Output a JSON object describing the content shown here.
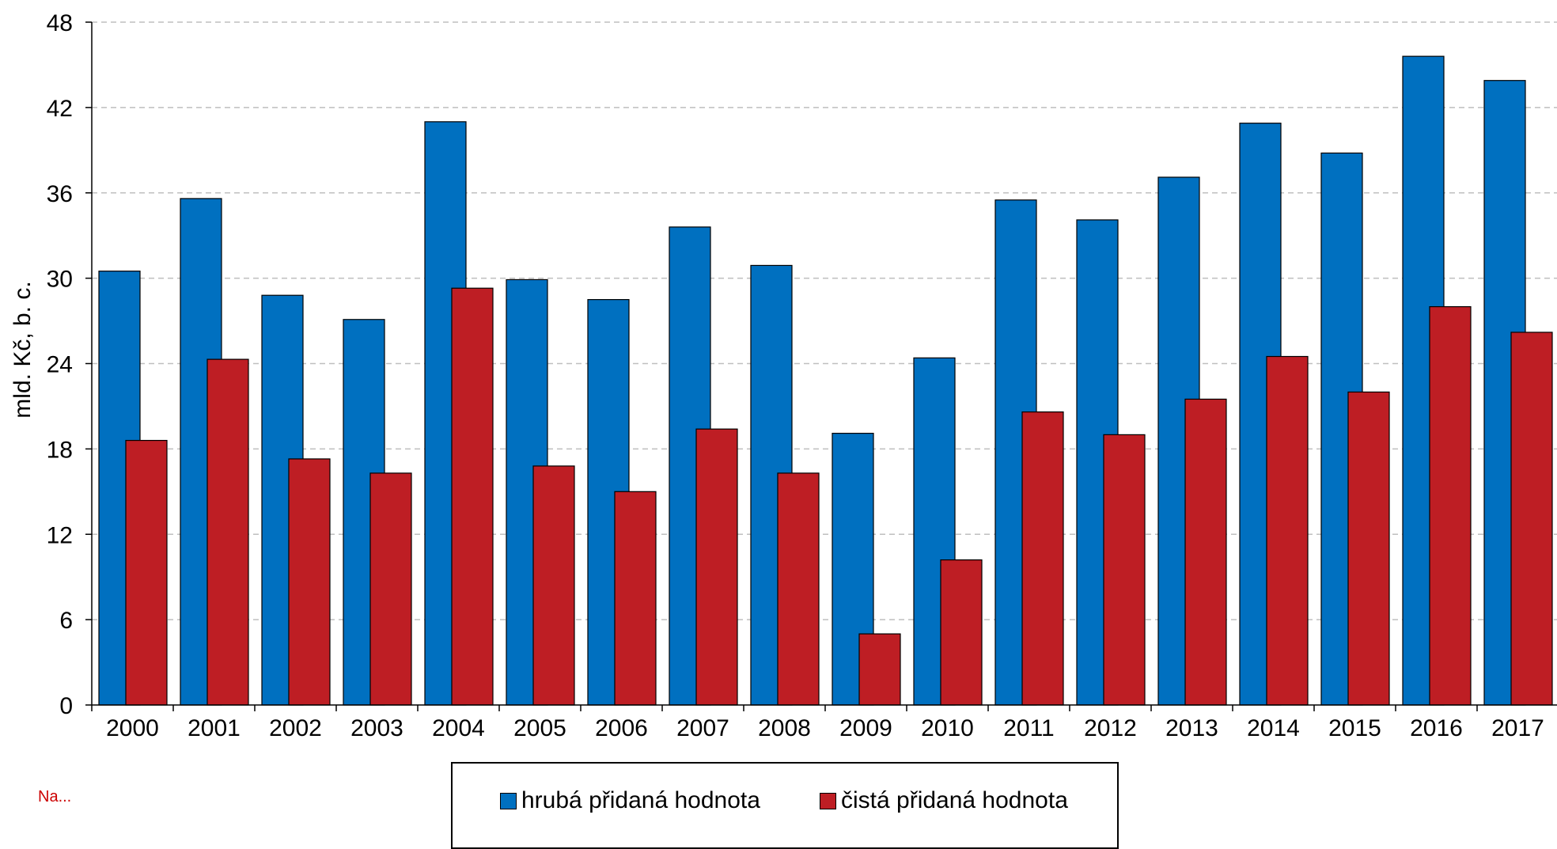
{
  "chart_data": {
    "type": "bar",
    "categories": [
      "2000",
      "2001",
      "2002",
      "2003",
      "2004",
      "2005",
      "2006",
      "2007",
      "2008",
      "2009",
      "2010",
      "2011",
      "2012",
      "2013",
      "2014",
      "2015",
      "2016",
      "2017"
    ],
    "series": [
      {
        "name": "hrubá přidaná hodnota",
        "color": "#0070C0",
        "values": [
          30.5,
          35.6,
          28.8,
          27.1,
          41.0,
          29.9,
          28.5,
          33.6,
          30.9,
          19.1,
          24.4,
          35.5,
          34.1,
          37.1,
          40.9,
          38.8,
          45.6,
          43.9
        ]
      },
      {
        "name": "čistá přidaná hodnota",
        "color": "#BE1E24",
        "values": [
          18.6,
          24.3,
          17.3,
          16.3,
          29.3,
          16.8,
          15.0,
          19.4,
          16.3,
          5.0,
          10.2,
          20.6,
          19.0,
          21.5,
          24.5,
          22.0,
          28.0,
          26.2
        ]
      }
    ],
    "ylabel": "mld. Kč, b. c.",
    "ylim": [
      0,
      48
    ],
    "yticks": [
      "0",
      "6",
      "12",
      "18",
      "24",
      "30",
      "36",
      "42",
      "48"
    ],
    "grid": true,
    "legend_position": "bottom"
  },
  "note": "Na..."
}
